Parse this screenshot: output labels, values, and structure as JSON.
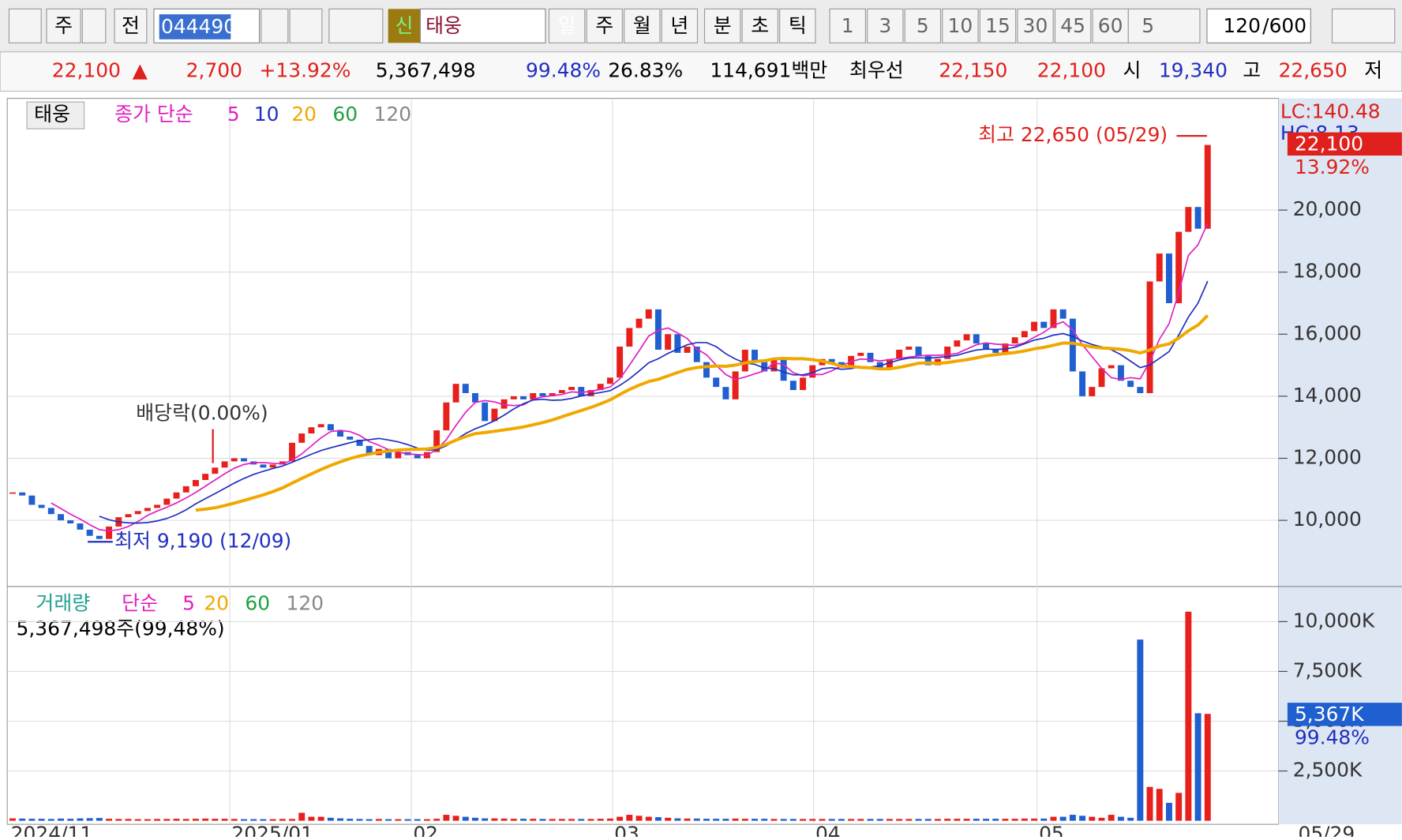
{
  "toolbar": {
    "market": "주",
    "prev": "전",
    "code": "044490",
    "new": "신",
    "name": "태웅",
    "periods": [
      "일",
      "주",
      "월",
      "년",
      "분",
      "초",
      "틱"
    ],
    "minutes": [
      "1",
      "3",
      "5",
      "10",
      "15",
      "30",
      "45",
      "60"
    ],
    "count_sel": "5",
    "count": "120",
    "max": "/600"
  },
  "quote": {
    "price": "22,100",
    "arrow": "▲",
    "change": "2,700",
    "rate": "+13.92%",
    "volume": "5,367,498",
    "vol_rate": "99.48%",
    "turnover": "26.83%",
    "amount": "114,691백만",
    "best_label": "최우선",
    "ask": "22,150",
    "bid": "22,100",
    "open_label": "시",
    "open": "19,340",
    "high_label": "고",
    "high": "22,650",
    "low_label": "저"
  },
  "price_chart": {
    "type": "candlestick",
    "name": "태웅",
    "ma_label": "종가 단순",
    "ma": [
      "5",
      "10",
      "20",
      "60",
      "120"
    ],
    "ylim": [
      7896,
      23602
    ],
    "yticks": [
      {
        "value": 10000,
        "label": "10,000"
      },
      {
        "value": 12000,
        "label": "12,000"
      },
      {
        "value": 14000,
        "label": "14,000"
      },
      {
        "value": 16000,
        "label": "16,000"
      },
      {
        "value": 18000,
        "label": "18,000"
      },
      {
        "value": 20000,
        "label": "20,000"
      }
    ],
    "high_note": "최고 22,650 (05/29)",
    "low_note": "최저 9,190 (12/09)",
    "dividend_note": "배당락(0.00%)",
    "lc": "LC:140.48",
    "hc": "HC:8.13",
    "last": "22,100",
    "last_rate": "13.92%",
    "x_labels": [
      "2024/11",
      "2025/01",
      "02",
      "03",
      "04",
      "05",
      "05/29"
    ],
    "close": [
      10900,
      10800,
      10500,
      10400,
      10200,
      10000,
      9900,
      9700,
      9500,
      9400,
      9800,
      10100,
      10200,
      10300,
      10400,
      10500,
      10700,
      10900,
      11100,
      11300,
      11500,
      11700,
      11900,
      12000,
      11900,
      11800,
      11700,
      11800,
      11900,
      12500,
      12800,
      13000,
      13100,
      12900,
      12700,
      12600,
      12400,
      12100,
      12300,
      12000,
      12200,
      12100,
      12000,
      12200,
      12900,
      13800,
      14400,
      14100,
      13800,
      13200,
      13600,
      13900,
      14000,
      13900,
      14100,
      14000,
      14100,
      14200,
      14300,
      14000,
      14200,
      14400,
      14600,
      15600,
      16200,
      16500,
      16800,
      15500,
      16000,
      15400,
      15600,
      15100,
      14600,
      14300,
      13900,
      14800,
      15500,
      15100,
      14800,
      15200,
      14500,
      14200,
      14600,
      15000,
      15200,
      15100,
      15000,
      15300,
      15400,
      15100,
      14900,
      15200,
      15500,
      15600,
      15300,
      15000,
      15200,
      15600,
      15800,
      16000,
      15700,
      15500,
      15400,
      15700,
      15900,
      16100,
      16400,
      16200,
      16800,
      16500,
      14800,
      14000,
      14300,
      14900,
      15000,
      14500,
      14300,
      14100,
      17700,
      18600,
      17000,
      19300,
      20100,
      19400,
      22100
    ]
  },
  "volume_chart": {
    "type": "bar",
    "name": "거래량",
    "ma_label": "단순",
    "ma": [
      "5",
      "20",
      "60",
      "120"
    ],
    "summary": "5,367,498주(99,48%)",
    "ylim": [
      0,
      11585
    ],
    "yticks": [
      {
        "value": 2500,
        "label": "2,500K"
      },
      {
        "value": 5000,
        "label": "5,000K"
      },
      {
        "value": 7500,
        "label": "7,500K"
      },
      {
        "value": 10000,
        "label": "10,000K"
      }
    ],
    "last": "5,367K",
    "last_rate": "99.48%",
    "values": [
      120,
      110,
      100,
      100,
      90,
      110,
      100,
      120,
      130,
      140,
      100,
      90,
      90,
      80,
      80,
      90,
      90,
      100,
      90,
      100,
      110,
      100,
      100,
      90,
      80,
      80,
      80,
      80,
      90,
      90,
      400,
      200,
      200,
      150,
      120,
      100,
      90,
      80,
      90,
      80,
      80,
      80,
      80,
      80,
      100,
      300,
      250,
      200,
      150,
      120,
      120,
      110,
      100,
      100,
      100,
      90,
      90,
      90,
      90,
      90,
      90,
      100,
      110,
      200,
      300,
      250,
      200,
      180,
      150,
      120,
      110,
      110,
      100,
      100,
      100,
      110,
      100,
      100,
      100,
      90,
      90,
      90,
      90,
      90,
      90,
      90,
      90,
      90,
      90,
      90,
      90,
      90,
      90,
      90,
      90,
      90,
      90,
      100,
      100,
      100,
      100,
      100,
      100,
      100,
      100,
      110,
      110,
      110,
      200,
      200,
      300,
      250,
      200,
      150,
      300,
      200,
      150,
      9100,
      1700,
      1600,
      900,
      1400,
      10500,
      5400,
      5367
    ]
  }
}
